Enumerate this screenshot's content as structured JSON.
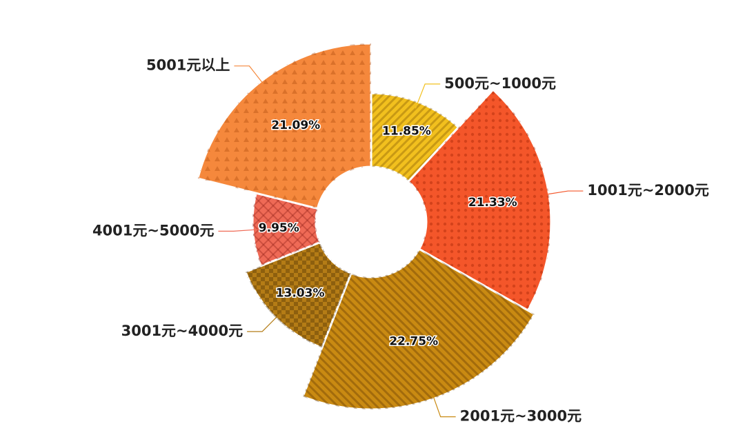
{
  "chart_data": {
    "type": "rose",
    "categories": [
      "500元~1000元",
      "1001元~2000元",
      "2001元~3000元",
      "3001元~4000元",
      "4001元~5000元",
      "5001元以上"
    ],
    "values": [
      11.85,
      21.33,
      22.75,
      13.03,
      9.95,
      21.09
    ],
    "value_labels": [
      "11.85%",
      "21.33%",
      "22.75%",
      "13.03%",
      "9.95%",
      "21.09%"
    ],
    "colors": [
      "#f2c01e",
      "#f4562a",
      "#c98a12",
      "#b47c16",
      "#ef6a56",
      "#f5883c"
    ]
  }
}
